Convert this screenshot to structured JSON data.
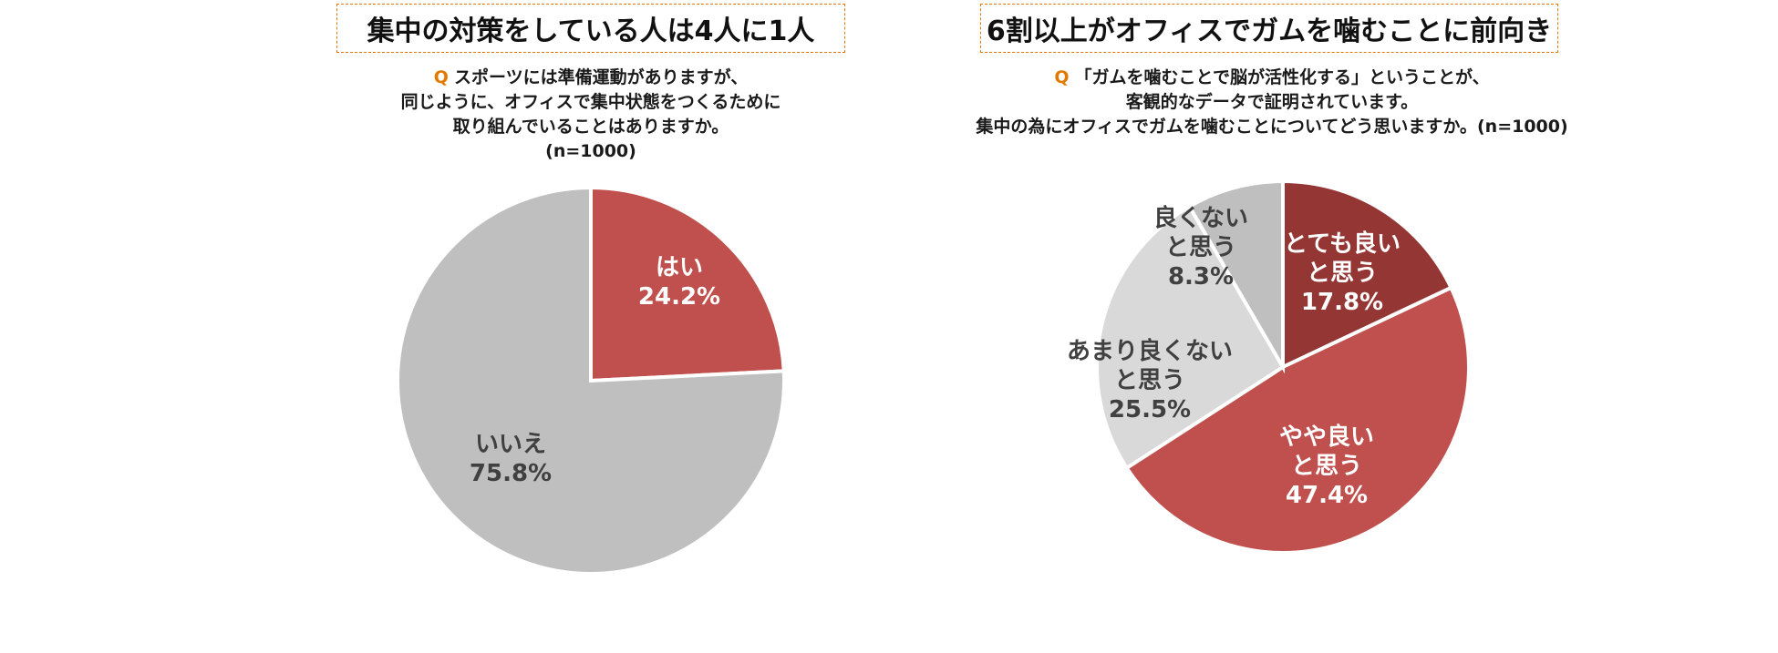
{
  "left": {
    "headline": "集中の対策をしている人は4人に1人",
    "question": {
      "mark": "Q",
      "lines": [
        "スポーツには準備運動がありますが、",
        "同じように、オフィスで集中状態をつくるために",
        "取り組んでいることはありますか。",
        "(n=1000)"
      ]
    }
  },
  "right": {
    "headline": "6割以上がオフィスでガムを噛むことに前向き",
    "question": {
      "mark": "Q",
      "lines": [
        "「ガムを噛むことで脳が活性化する」ということが、",
        "客観的なデータで証明されています。",
        "集中の為にオフィスでガムを噛むことについてどう思いますか。(n=1000)"
      ]
    }
  },
  "chart_data": [
    {
      "type": "pie",
      "title": "集中の対策をしている人は4人に1人",
      "slices": [
        {
          "label": "はい",
          "value": 24.2,
          "value_label": "24.2%",
          "color": "#c0504d",
          "text_color": "#ffffff"
        },
        {
          "label": "いいえ",
          "value": 75.8,
          "value_label": "75.8%",
          "color": "#bfbfbf",
          "text_color": "#404040"
        }
      ]
    },
    {
      "type": "pie",
      "title": "6割以上がオフィスでガムを噛むことに前向き",
      "slices": [
        {
          "label": "とても良いと思う",
          "label_lines": [
            "とても良い",
            "と思う"
          ],
          "value": 17.8,
          "value_label": "17.8%",
          "color": "#943634",
          "text_color": "#ffffff"
        },
        {
          "label": "やや良いと思う",
          "label_lines": [
            "やや良い",
            "と思う"
          ],
          "value": 47.4,
          "value_label": "47.4%",
          "color": "#c0504d",
          "text_color": "#ffffff"
        },
        {
          "label": "あまり良くないと思う",
          "label_lines": [
            "あまり良くない",
            "と思う"
          ],
          "value": 25.5,
          "value_label": "25.5%",
          "color": "#d9d9d9",
          "text_color": "#404040"
        },
        {
          "label": "良くないと思う",
          "label_lines": [
            "良くない",
            "と思う"
          ],
          "value": 8.3,
          "value_label": "8.3%",
          "color": "#bfbfbf",
          "text_color": "#404040"
        }
      ]
    }
  ]
}
